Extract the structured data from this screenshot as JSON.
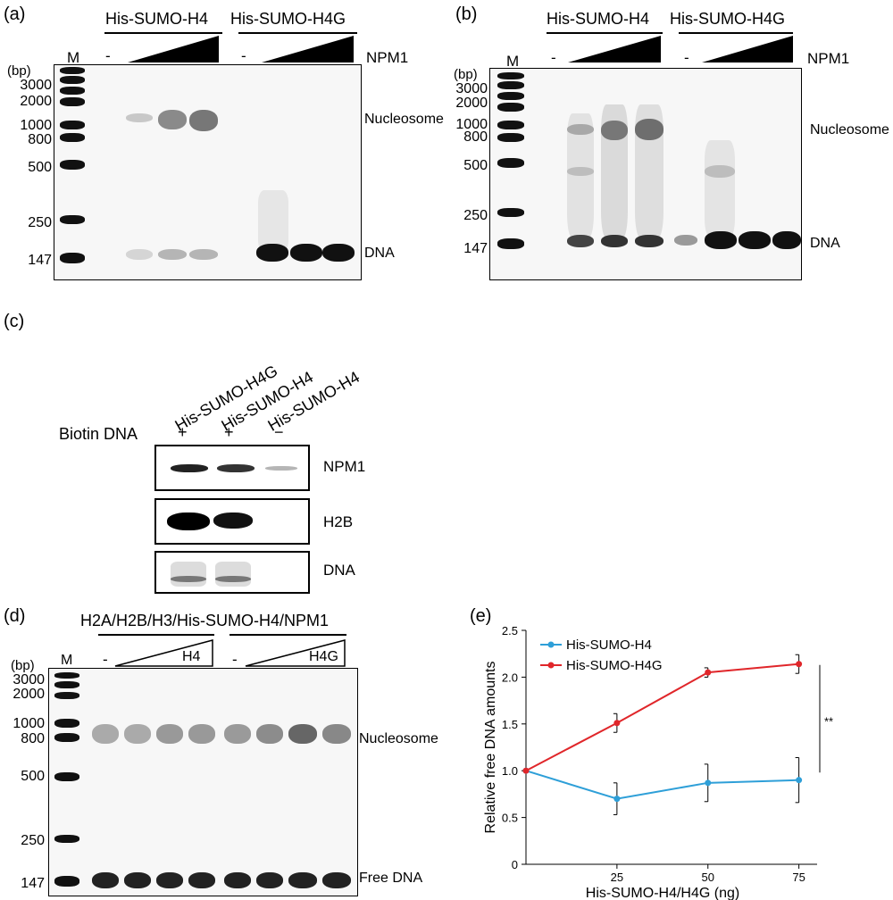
{
  "panels": {
    "a": {
      "label": "(a)",
      "group1": "His-SUMO-H4",
      "group2": "His-SUMO-H4G",
      "marker": "M",
      "minus": "-",
      "titrant": "NPM1",
      "bp": "(bp)",
      "ladder": [
        "3000",
        "2000",
        "1000",
        "800",
        "500",
        "250",
        "147"
      ],
      "nucleosome": "Nucleosome",
      "dna": "DNA"
    },
    "b": {
      "label": "(b)",
      "group1": "His-SUMO-H4",
      "group2": "His-SUMO-H4G",
      "marker": "M",
      "minus": "-",
      "titrant": "NPM1",
      "bp": "(bp)",
      "ladder": [
        "3000",
        "2000",
        "1000",
        "800",
        "500",
        "250",
        "147"
      ],
      "nucleosome": "Nucleosome",
      "dna": "DNA"
    },
    "c": {
      "label": "(c)",
      "lanes": [
        "His-SUMO-H4G",
        "His-SUMO-H4",
        "His-SUMO-H4"
      ],
      "row_label": "Biotin DNA",
      "signs": [
        "+",
        "+",
        "−"
      ],
      "blots": [
        "NPM1",
        "H2B",
        "DNA"
      ]
    },
    "d": {
      "label": "(d)",
      "title": "H2A/H2B/H3/His-SUMO-H4/NPM1",
      "marker": "M",
      "minus": "-",
      "tri1": "H4",
      "tri2": "H4G",
      "bp": "(bp)",
      "ladder": [
        "3000",
        "2000",
        "1000",
        "800",
        "500",
        "250",
        "147"
      ],
      "nucleosome": "Nucleosome",
      "free_dna": "Free DNA"
    },
    "e": {
      "label": "(e)",
      "significance": "**"
    }
  },
  "chart_data": {
    "type": "line",
    "x": [
      0,
      25,
      50,
      75
    ],
    "xticks": [
      "25",
      "50",
      "75"
    ],
    "yticks": [
      "0",
      "0.5",
      "1.0",
      "1.5",
      "2.0",
      "2.5"
    ],
    "xlabel": "His-SUMO-H4/H4G (ng)",
    "ylabel": "Relative  free DNA amounts",
    "xlim": [
      0,
      80
    ],
    "ylim": [
      0,
      2.5
    ],
    "legend_position": "top-left",
    "series": [
      {
        "name": "His-SUMO-H4",
        "color": "#2e9fd8",
        "values": [
          1.0,
          0.7,
          0.87,
          0.9
        ],
        "errors": [
          0,
          0.17,
          0.2,
          0.24
        ]
      },
      {
        "name": "His-SUMO-H4G",
        "color": "#e0262a",
        "values": [
          1.0,
          1.51,
          2.05,
          2.14
        ],
        "errors": [
          0,
          0.1,
          0.05,
          0.1
        ]
      }
    ]
  }
}
